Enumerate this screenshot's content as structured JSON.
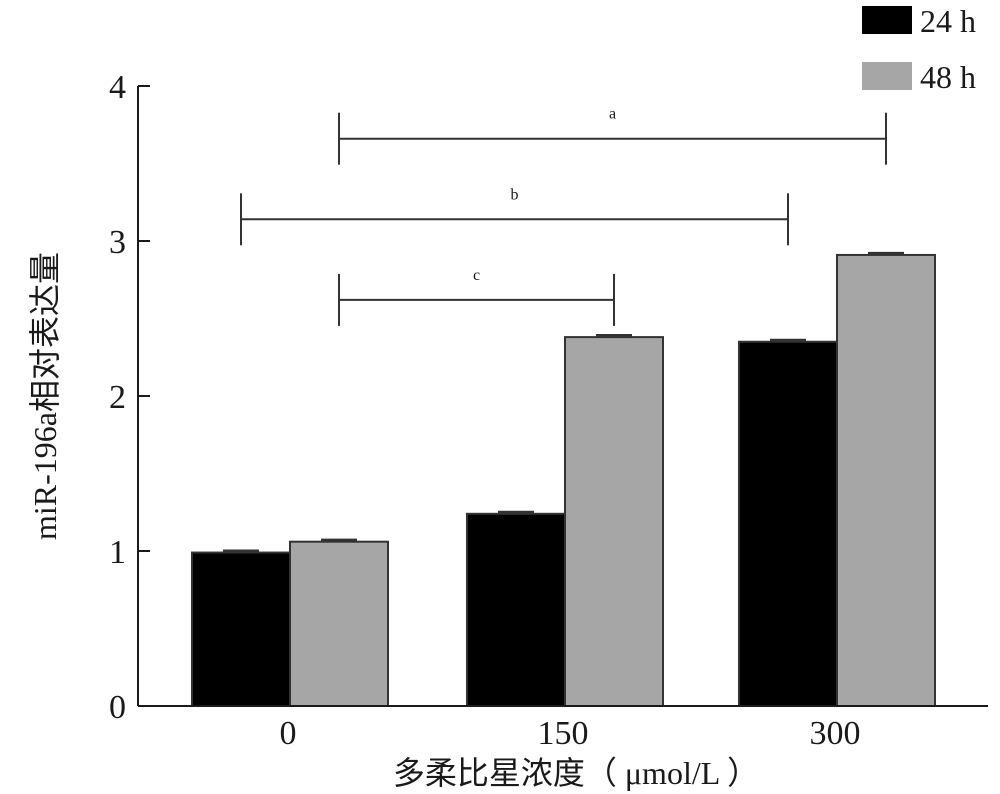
{
  "chart_data": {
    "type": "bar",
    "categories": [
      "0",
      "150",
      "300"
    ],
    "series": [
      {
        "name": "24 h",
        "color": "#000000",
        "values": [
          0.99,
          1.24,
          2.35
        ],
        "errors": [
          0.01,
          0.01,
          0.01
        ]
      },
      {
        "name": "48 h",
        "color": "#a6a6a6",
        "values": [
          1.06,
          2.38,
          2.91
        ],
        "errors": [
          0.01,
          0.01,
          0.01
        ]
      }
    ],
    "title": "",
    "xlabel": "多柔比星浓度（ μmol/L ）",
    "ylabel": "miR-196a相对表达量",
    "ylim": [
      0,
      4
    ],
    "yticks": [
      "0",
      "1",
      "2",
      "3",
      "4"
    ],
    "grid": false,
    "legend": "top-right",
    "significance": [
      {
        "label": "a",
        "from": {
          "category": 0,
          "series": 1
        },
        "to": {
          "category": 2,
          "series": 1
        },
        "y": 3.66
      },
      {
        "label": "b",
        "from": {
          "category": 0,
          "series": 0
        },
        "to": {
          "category": 2,
          "series": 0
        },
        "y": 3.14
      },
      {
        "label": "c",
        "from": {
          "category": 0,
          "series": 1
        },
        "to": {
          "category": 1,
          "series": 1
        },
        "y": 2.62
      }
    ]
  }
}
